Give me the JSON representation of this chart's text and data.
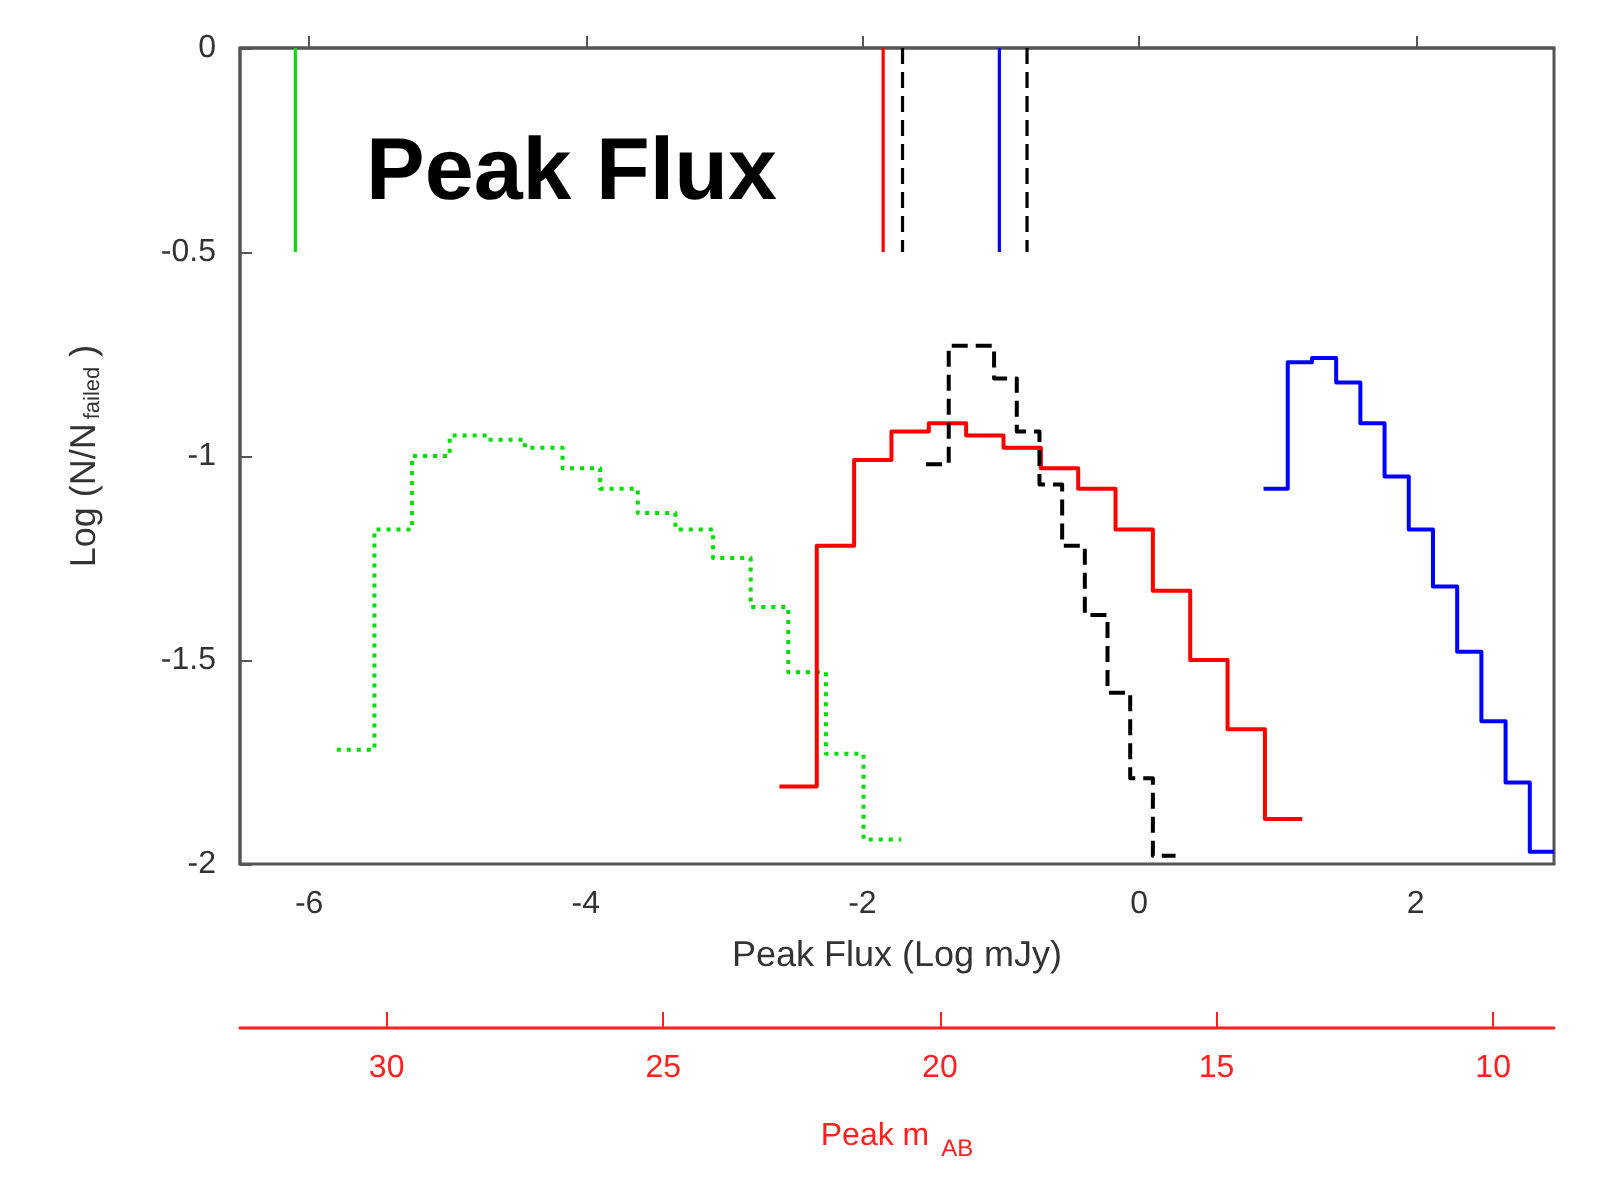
{
  "chart_data": {
    "type": "histogram",
    "title": "Peak Flux",
    "xlabel": "Peak Flux (Log mJy)",
    "ylabel": "Log (N/N$_{failed}$ )",
    "x2label": "Peak m$_{AB}$",
    "xlim": [
      -6.5,
      3
    ],
    "xticks": [
      -6,
      -4,
      -2,
      0,
      2
    ],
    "ylim": [
      -2,
      0
    ],
    "yticks": [
      0,
      -0.5,
      -1,
      -1.5,
      -2
    ],
    "x2lim": [
      32.65,
      8.9
    ],
    "x2ticks": [
      30,
      25,
      20,
      15,
      10
    ],
    "series": [
      {
        "color": "#00e000",
        "line_style": "dotted",
        "bins": [
          -5.8,
          -5.528,
          -5.256,
          -4.984,
          -4.712,
          -4.44,
          -4.168,
          -3.896,
          -3.624,
          -3.352,
          -3.08,
          -2.808,
          -2.536,
          -2.264,
          -1.992,
          -1.72
        ],
        "values": [
          -1.72,
          -1.18,
          -1.0,
          -0.95,
          -0.96,
          -0.98,
          -1.03,
          -1.08,
          -1.14,
          -1.18,
          -1.25,
          -1.37,
          -1.53,
          -1.73,
          -1.94
        ]
      },
      {
        "color": "#ff0000",
        "line_style": "solid",
        "bins": [
          -2.6,
          -2.33,
          -2.06,
          -1.79,
          -1.52,
          -1.25,
          -0.98,
          -0.71,
          -0.44,
          -0.17,
          0.1,
          0.37,
          0.64,
          0.91,
          1.18
        ],
        "values": [
          -1.81,
          -1.22,
          -1.01,
          -0.94,
          -0.92,
          -0.95,
          -0.98,
          -1.03,
          -1.08,
          -1.18,
          -1.33,
          -1.5,
          -1.67,
          -1.89
        ]
      },
      {
        "color": "#000000",
        "line_style": "dashed",
        "bins": [
          -1.54,
          -1.376,
          -1.212,
          -1.048,
          -0.884,
          -0.72,
          -0.556,
          -0.392,
          -0.228,
          -0.064,
          0.1,
          0.264
        ],
        "values": [
          -1.02,
          -0.73,
          -0.73,
          -0.81,
          -0.94,
          -1.07,
          -1.22,
          -1.39,
          -1.58,
          -1.79,
          -1.98
        ]
      },
      {
        "color": "#0000ff",
        "line_style": "solid",
        "bins": [
          0.9,
          1.075,
          1.25,
          1.425,
          1.6,
          1.775,
          1.95,
          2.125,
          2.3,
          2.475,
          2.65,
          2.825,
          3.0
        ],
        "values": [
          -1.08,
          -0.77,
          -0.76,
          -0.82,
          -0.92,
          -1.05,
          -1.18,
          -1.32,
          -1.48,
          -1.65,
          -1.8,
          -1.97
        ]
      },
      {
        "type": "line",
        "color": "#00e000",
        "line_style": "solid",
        "x": [
          -6.1,
          -6.1
        ],
        "values": [
          0,
          -0.5
        ]
      },
      {
        "type": "line",
        "color": "#ff0000",
        "line_style": "solid",
        "x": [
          -1.85,
          -1.85
        ],
        "values": [
          0,
          -0.5
        ]
      },
      {
        "type": "line",
        "color": "#000000",
        "line_style": "dashed",
        "x": [
          -1.71,
          -1.71
        ],
        "values": [
          0,
          -0.5
        ]
      },
      {
        "type": "line",
        "color": "#0000ff",
        "line_style": "solid",
        "x": [
          -1.01,
          -1.01
        ],
        "values": [
          0,
          -0.5
        ]
      },
      {
        "type": "line",
        "color": "#000000",
        "line_style": "dashed",
        "x": [
          -0.81,
          -0.81
        ],
        "values": [
          0,
          -0.5
        ]
      }
    ]
  }
}
